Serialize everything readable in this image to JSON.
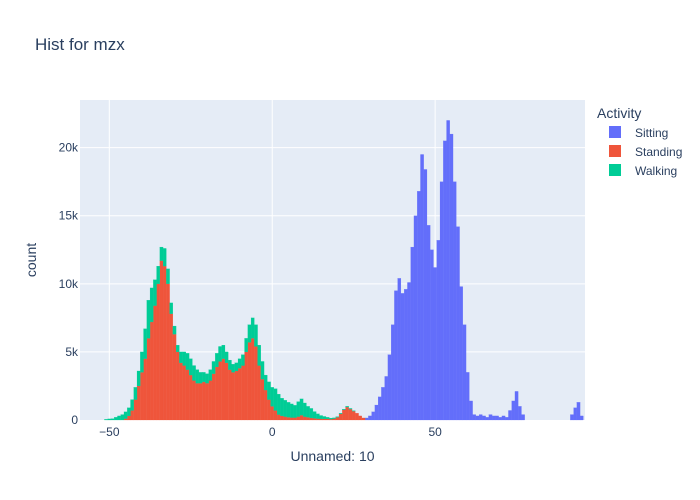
{
  "chart_data": {
    "type": "bar",
    "subtype": "histogram-stacked",
    "title": "Hist for mzx",
    "xlabel": "Unnamed: 10",
    "ylabel": "count",
    "xlim": [
      -59,
      96
    ],
    "ylim": [
      0,
      23500
    ],
    "x_ticks": [
      {
        "value": -50,
        "label": "−50"
      },
      {
        "value": 0,
        "label": "0"
      },
      {
        "value": 50,
        "label": "50"
      }
    ],
    "y_ticks": [
      {
        "value": 0,
        "label": "0"
      },
      {
        "value": 5000,
        "label": "5k"
      },
      {
        "value": 10000,
        "label": "10k"
      },
      {
        "value": 15000,
        "label": "15k"
      },
      {
        "value": 20000,
        "label": "20k"
      }
    ],
    "grid": true,
    "legend": {
      "title": "Activity",
      "placement": "top-right",
      "entries": [
        {
          "name": "Sitting",
          "color": "#636efa"
        },
        {
          "name": "Standing",
          "color": "#ef553b"
        },
        {
          "name": "Walking",
          "color": "#00cc96"
        }
      ]
    },
    "bin_width": 1,
    "series": [
      {
        "name": "Sitting",
        "color": "#636efa",
        "points": [
          [
            29,
            150
          ],
          [
            30,
            300
          ],
          [
            31,
            600
          ],
          [
            32,
            1100
          ],
          [
            33,
            1700
          ],
          [
            34,
            2400
          ],
          [
            35,
            3200
          ],
          [
            36,
            4800
          ],
          [
            37,
            7000
          ],
          [
            38,
            9500
          ],
          [
            39,
            10400
          ],
          [
            40,
            9300
          ],
          [
            41,
            9600
          ],
          [
            42,
            10100
          ],
          [
            43,
            12700
          ],
          [
            44,
            15000
          ],
          [
            45,
            16800
          ],
          [
            46,
            19500
          ],
          [
            47,
            18400
          ],
          [
            48,
            14300
          ],
          [
            49,
            12500
          ],
          [
            50,
            11200
          ],
          [
            51,
            13200
          ],
          [
            52,
            17500
          ],
          [
            53,
            20500
          ],
          [
            54,
            22000
          ],
          [
            55,
            21000
          ],
          [
            56,
            17500
          ],
          [
            57,
            14200
          ],
          [
            58,
            9800
          ],
          [
            59,
            7000
          ],
          [
            60,
            3500
          ],
          [
            61,
            1400
          ],
          [
            62,
            400
          ],
          [
            63,
            300
          ],
          [
            64,
            400
          ],
          [
            65,
            300
          ],
          [
            66,
            200
          ],
          [
            67,
            400
          ],
          [
            68,
            300
          ],
          [
            69,
            300
          ],
          [
            70,
            200
          ],
          [
            71,
            300
          ],
          [
            72,
            200
          ],
          [
            73,
            700
          ],
          [
            74,
            1400
          ],
          [
            75,
            2100
          ],
          [
            76,
            1000
          ],
          [
            77,
            400
          ],
          [
            92,
            400
          ],
          [
            93,
            900
          ],
          [
            94,
            1300
          ],
          [
            95,
            300
          ]
        ]
      },
      {
        "name": "Standing",
        "color": "#ef553b",
        "points": [
          [
            -45,
            100
          ],
          [
            -44,
            300
          ],
          [
            -43,
            700
          ],
          [
            -42,
            1500
          ],
          [
            -41,
            2500
          ],
          [
            -40,
            3500
          ],
          [
            -39,
            4500
          ],
          [
            -38,
            6000
          ],
          [
            -37,
            7200
          ],
          [
            -36,
            8400
          ],
          [
            -35,
            10000
          ],
          [
            -34,
            11700
          ],
          [
            -33,
            11300
          ],
          [
            -32,
            10000
          ],
          [
            -31,
            7800
          ],
          [
            -30,
            6300
          ],
          [
            -29,
            5000
          ],
          [
            -28,
            4200
          ],
          [
            -27,
            4000
          ],
          [
            -26,
            3700
          ],
          [
            -25,
            3300
          ],
          [
            -24,
            2900
          ],
          [
            -23,
            2700
          ],
          [
            -22,
            2700
          ],
          [
            -21,
            2800
          ],
          [
            -20,
            2700
          ],
          [
            -19,
            2900
          ],
          [
            -18,
            3400
          ],
          [
            -17,
            3900
          ],
          [
            -16,
            4300
          ],
          [
            -15,
            4500
          ],
          [
            -14,
            4200
          ],
          [
            -13,
            3700
          ],
          [
            -12,
            3500
          ],
          [
            -11,
            3600
          ],
          [
            -10,
            3800
          ],
          [
            -9,
            4000
          ],
          [
            -8,
            5000
          ],
          [
            -7,
            5700
          ],
          [
            -6,
            6000
          ],
          [
            -5,
            5400
          ],
          [
            -4,
            4000
          ],
          [
            -3,
            3000
          ],
          [
            -2,
            2200
          ],
          [
            -1,
            1500
          ],
          [
            0,
            1000
          ],
          [
            1,
            700
          ],
          [
            2,
            400
          ],
          [
            3,
            300
          ],
          [
            4,
            250
          ],
          [
            5,
            200
          ],
          [
            6,
            180
          ],
          [
            7,
            180
          ],
          [
            8,
            250
          ],
          [
            9,
            350
          ],
          [
            10,
            250
          ],
          [
            11,
            200
          ],
          [
            12,
            150
          ],
          [
            13,
            120
          ],
          [
            14,
            100
          ],
          [
            15,
            80
          ],
          [
            16,
            80
          ],
          [
            17,
            80
          ],
          [
            18,
            60
          ],
          [
            19,
            100
          ],
          [
            20,
            200
          ],
          [
            21,
            450
          ],
          [
            22,
            750
          ],
          [
            23,
            950
          ],
          [
            24,
            800
          ],
          [
            25,
            650
          ],
          [
            26,
            500
          ],
          [
            27,
            300
          ],
          [
            28,
            150
          ]
        ]
      },
      {
        "name": "Walking",
        "color": "#00cc96",
        "points": [
          [
            -51,
            50
          ],
          [
            -50,
            80
          ],
          [
            -49,
            100
          ],
          [
            -48,
            200
          ],
          [
            -47,
            300
          ],
          [
            -46,
            400
          ],
          [
            -45,
            500
          ],
          [
            -44,
            600
          ],
          [
            -43,
            800
          ],
          [
            -42,
            900
          ],
          [
            -41,
            1100
          ],
          [
            -40,
            1500
          ],
          [
            -39,
            2200
          ],
          [
            -38,
            2800
          ],
          [
            -37,
            2500
          ],
          [
            -36,
            1900
          ],
          [
            -35,
            1300
          ],
          [
            -34,
            1000
          ],
          [
            -33,
            1300
          ],
          [
            -32,
            1100
          ],
          [
            -31,
            800
          ],
          [
            -30,
            600
          ],
          [
            -29,
            500
          ],
          [
            -28,
            800
          ],
          [
            -27,
            1000
          ],
          [
            -26,
            1200
          ],
          [
            -25,
            1200
          ],
          [
            -24,
            1100
          ],
          [
            -23,
            1000
          ],
          [
            -22,
            800
          ],
          [
            -21,
            700
          ],
          [
            -20,
            700
          ],
          [
            -19,
            800
          ],
          [
            -18,
            900
          ],
          [
            -17,
            1000
          ],
          [
            -16,
            1100
          ],
          [
            -15,
            1000
          ],
          [
            -14,
            800
          ],
          [
            -13,
            700
          ],
          [
            -12,
            600
          ],
          [
            -11,
            600
          ],
          [
            -10,
            700
          ],
          [
            -9,
            800
          ],
          [
            -8,
            1000
          ],
          [
            -7,
            1300
          ],
          [
            -6,
            1500
          ],
          [
            -5,
            1600
          ],
          [
            -4,
            1500
          ],
          [
            -3,
            1300
          ],
          [
            -2,
            1100
          ],
          [
            -1,
            1300
          ],
          [
            0,
            1400
          ],
          [
            1,
            1600
          ],
          [
            2,
            1500
          ],
          [
            3,
            1300
          ],
          [
            4,
            1200
          ],
          [
            5,
            1100
          ],
          [
            6,
            1000
          ],
          [
            7,
            900
          ],
          [
            8,
            1100
          ],
          [
            9,
            1200
          ],
          [
            10,
            1000
          ],
          [
            11,
            800
          ],
          [
            12,
            700
          ],
          [
            13,
            500
          ],
          [
            14,
            350
          ],
          [
            15,
            250
          ],
          [
            16,
            180
          ],
          [
            17,
            120
          ],
          [
            18,
            80
          ],
          [
            19,
            60
          ],
          [
            20,
            50
          ],
          [
            21,
            50
          ],
          [
            22,
            50
          ],
          [
            23,
            60
          ],
          [
            24,
            50
          ],
          [
            25,
            40
          ]
        ]
      }
    ]
  }
}
